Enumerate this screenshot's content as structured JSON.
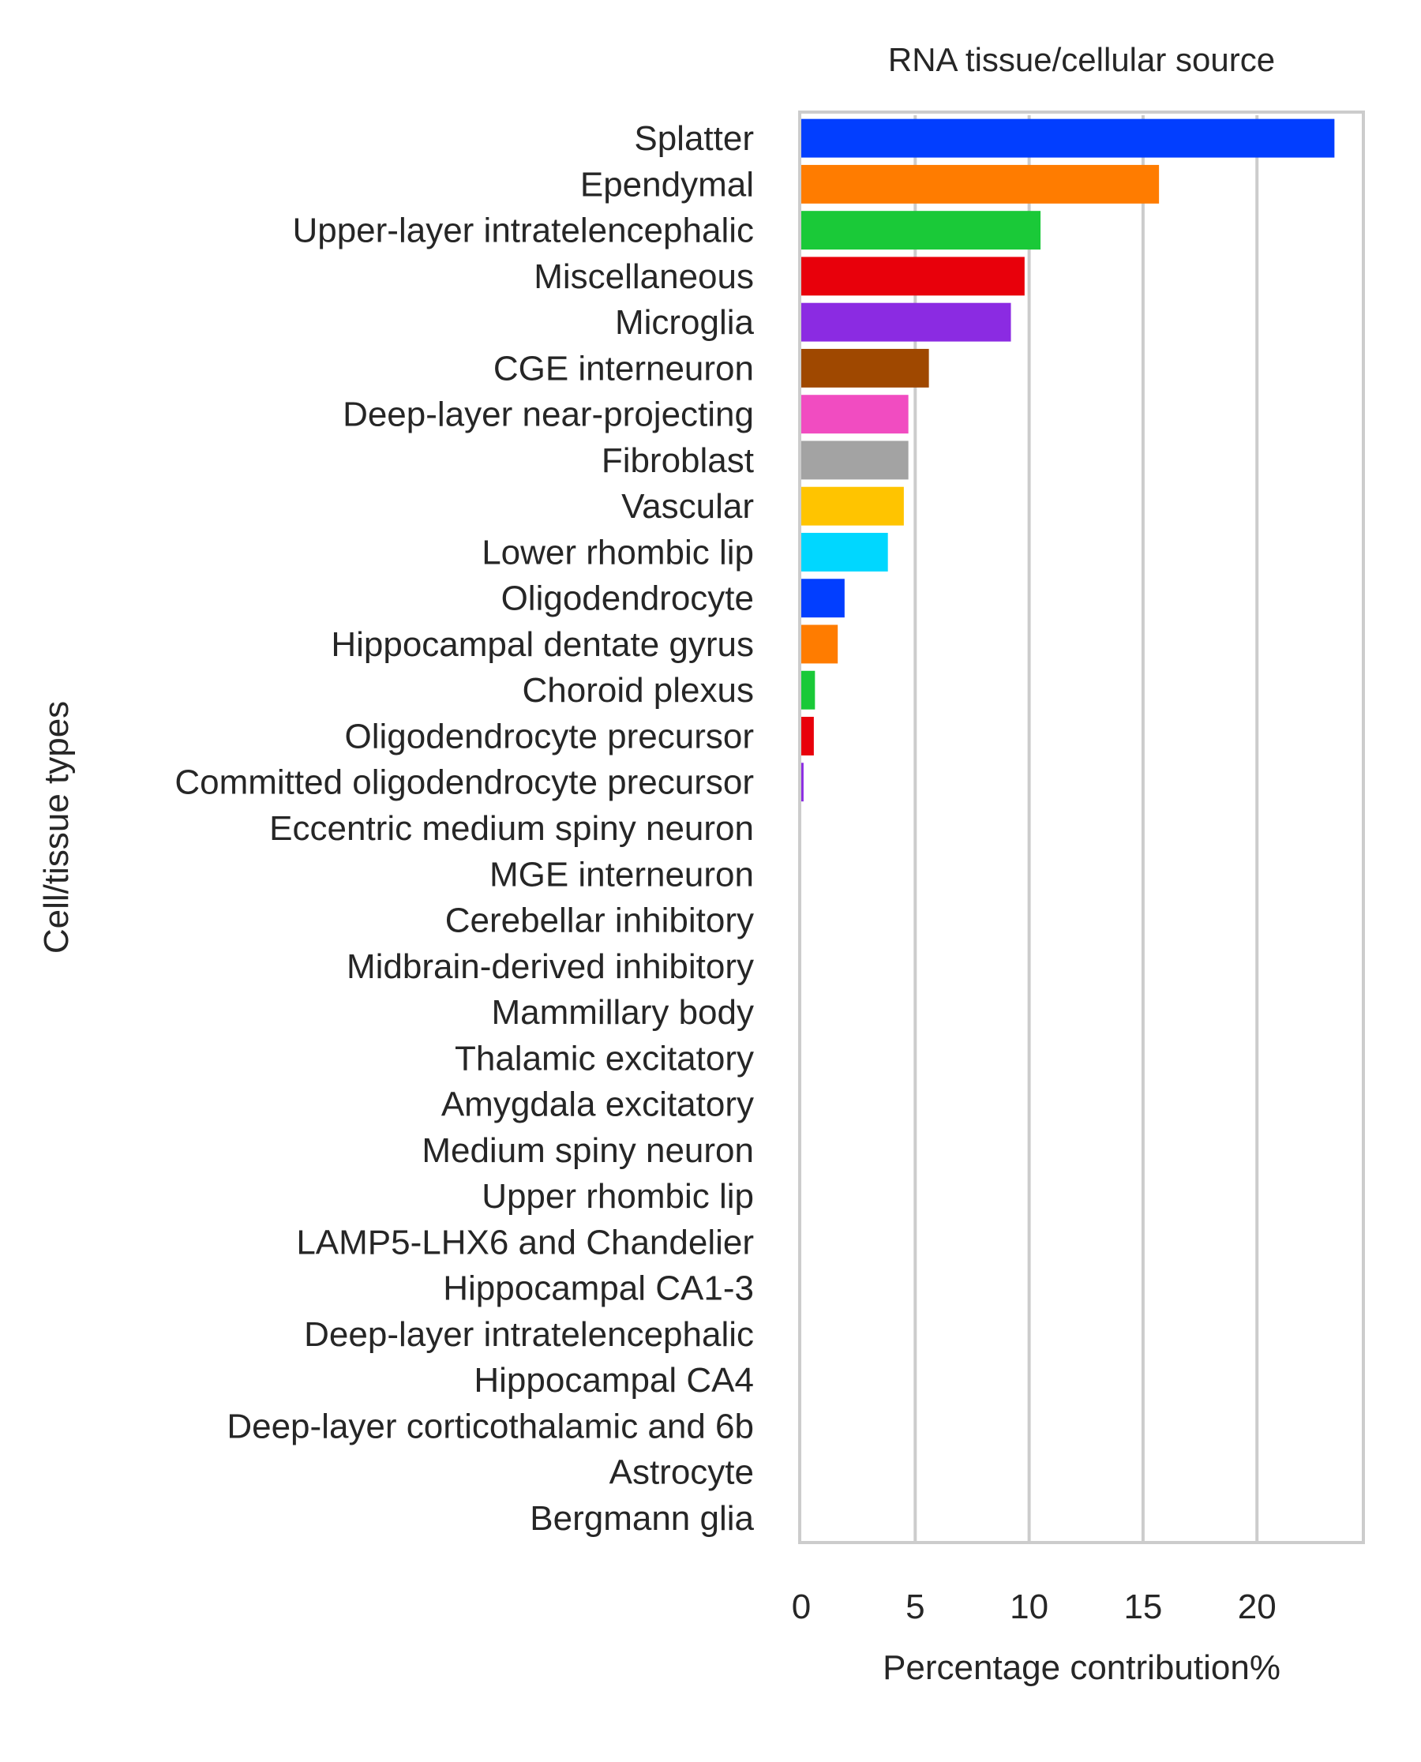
{
  "chart_data": {
    "type": "bar",
    "orientation": "horizontal",
    "title": "RNA tissue/cellular source",
    "xlabel": "Percentage contribution%",
    "ylabel": "Cell/tissue types",
    "xlim": [
      0,
      24.6
    ],
    "xticks": [
      0,
      5,
      10,
      15,
      20
    ],
    "grid": "vertical",
    "categories": [
      "Splatter",
      "Ependymal",
      "Upper-layer intratelencephalic",
      "Miscellaneous",
      "Microglia",
      "CGE interneuron",
      "Deep-layer near-projecting",
      "Fibroblast",
      "Vascular",
      "Lower rhombic lip",
      "Oligodendrocyte",
      "Hippocampal dentate gyrus",
      "Choroid plexus",
      "Oligodendrocyte precursor",
      "Committed oligodendrocyte precursor",
      "Eccentric medium spiny neuron",
      "MGE interneuron",
      "Cerebellar inhibitory",
      "Midbrain-derived inhibitory",
      "Mammillary body",
      "Thalamic excitatory",
      "Amygdala excitatory",
      "Medium spiny neuron",
      "Upper rhombic lip",
      "LAMP5-LHX6 and Chandelier",
      "Hippocampal CA1-3",
      "Deep-layer intratelencephalic",
      "Hippocampal CA4",
      "Deep-layer corticothalamic and 6b",
      "Astrocyte",
      "Bergmann glia"
    ],
    "values": [
      23.4,
      15.7,
      10.5,
      9.8,
      9.2,
      5.6,
      4.7,
      4.7,
      4.5,
      3.8,
      1.9,
      1.6,
      0.6,
      0.55,
      0.1,
      0,
      0,
      0,
      0,
      0,
      0,
      0,
      0,
      0,
      0,
      0,
      0,
      0,
      0,
      0,
      0
    ],
    "colors": [
      "#023eff",
      "#ff7c00",
      "#1ac938",
      "#e8000b",
      "#8b2be2",
      "#9f4800",
      "#f14cc1",
      "#a3a3a3",
      "#ffc400",
      "#00d7ff"
    ]
  }
}
